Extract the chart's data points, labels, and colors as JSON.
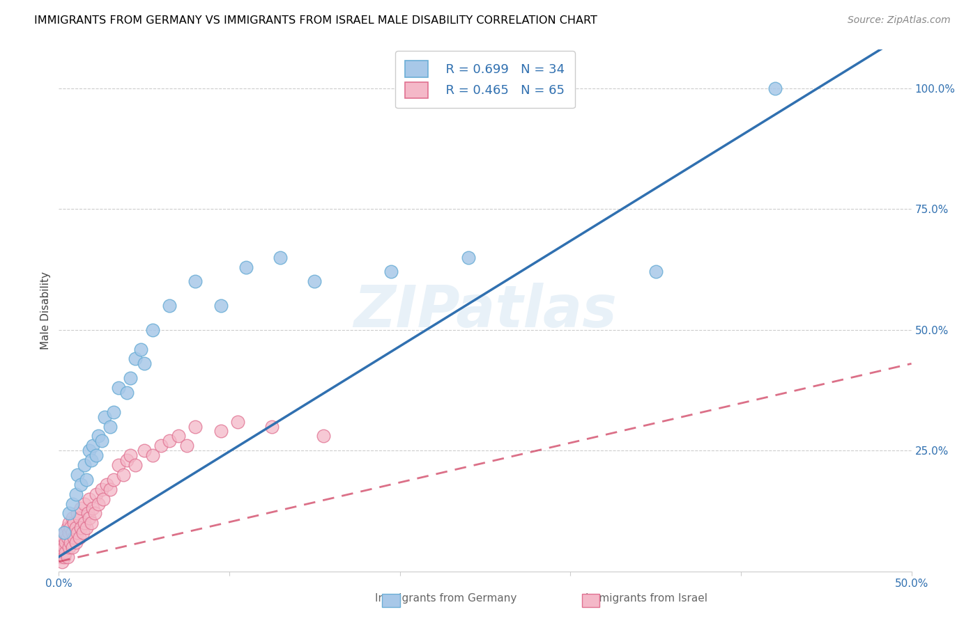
{
  "title": "IMMIGRANTS FROM GERMANY VS IMMIGRANTS FROM ISRAEL MALE DISABILITY CORRELATION CHART",
  "source": "Source: ZipAtlas.com",
  "ylabel": "Male Disability",
  "xlim": [
    0.0,
    0.5
  ],
  "ylim": [
    0.0,
    1.08
  ],
  "xtick_labels": [
    "0.0%",
    "",
    "",
    "",
    "",
    "50.0%"
  ],
  "xtick_vals": [
    0.0,
    0.1,
    0.2,
    0.3,
    0.4,
    0.5
  ],
  "ytick_labels": [
    "25.0%",
    "50.0%",
    "75.0%",
    "100.0%"
  ],
  "ytick_vals": [
    0.25,
    0.5,
    0.75,
    1.0
  ],
  "germany_color": "#a8c8e8",
  "germany_edge": "#6baed6",
  "israel_color": "#f4b8c8",
  "israel_edge": "#e07090",
  "germany_line_color": "#3070b0",
  "israel_line_color": "#d04060",
  "watermark": "ZIPatlas",
  "legend_r_germany": "R = 0.699",
  "legend_n_germany": "N = 34",
  "legend_r_israel": "R = 0.465",
  "legend_n_israel": "N = 65",
  "germany_slope": 2.18,
  "germany_intercept": 0.03,
  "israel_slope": 0.82,
  "israel_intercept": 0.02,
  "germany_x": [
    0.003,
    0.006,
    0.008,
    0.01,
    0.011,
    0.013,
    0.015,
    0.016,
    0.018,
    0.019,
    0.02,
    0.022,
    0.023,
    0.025,
    0.027,
    0.03,
    0.032,
    0.035,
    0.04,
    0.042,
    0.045,
    0.048,
    0.05,
    0.055,
    0.065,
    0.08,
    0.095,
    0.11,
    0.13,
    0.15,
    0.195,
    0.24,
    0.35,
    0.42
  ],
  "germany_y": [
    0.08,
    0.12,
    0.14,
    0.16,
    0.2,
    0.18,
    0.22,
    0.19,
    0.25,
    0.23,
    0.26,
    0.24,
    0.28,
    0.27,
    0.32,
    0.3,
    0.33,
    0.38,
    0.37,
    0.4,
    0.44,
    0.46,
    0.43,
    0.5,
    0.55,
    0.6,
    0.55,
    0.63,
    0.65,
    0.6,
    0.62,
    0.65,
    0.62,
    1.0
  ],
  "israel_x": [
    0.001,
    0.001,
    0.002,
    0.002,
    0.002,
    0.003,
    0.003,
    0.003,
    0.004,
    0.004,
    0.004,
    0.005,
    0.005,
    0.005,
    0.006,
    0.006,
    0.006,
    0.007,
    0.007,
    0.008,
    0.008,
    0.008,
    0.009,
    0.009,
    0.01,
    0.01,
    0.011,
    0.011,
    0.012,
    0.012,
    0.013,
    0.013,
    0.014,
    0.015,
    0.015,
    0.016,
    0.017,
    0.018,
    0.018,
    0.019,
    0.02,
    0.021,
    0.022,
    0.023,
    0.025,
    0.026,
    0.028,
    0.03,
    0.032,
    0.035,
    0.038,
    0.04,
    0.042,
    0.045,
    0.05,
    0.055,
    0.06,
    0.065,
    0.07,
    0.075,
    0.08,
    0.095,
    0.105,
    0.125,
    0.155
  ],
  "israel_y": [
    0.03,
    0.05,
    0.02,
    0.04,
    0.06,
    0.03,
    0.05,
    0.07,
    0.04,
    0.06,
    0.08,
    0.03,
    0.07,
    0.09,
    0.05,
    0.08,
    0.1,
    0.06,
    0.09,
    0.05,
    0.08,
    0.11,
    0.07,
    0.1,
    0.06,
    0.09,
    0.08,
    0.12,
    0.07,
    0.11,
    0.09,
    0.13,
    0.08,
    0.1,
    0.14,
    0.09,
    0.12,
    0.11,
    0.15,
    0.1,
    0.13,
    0.12,
    0.16,
    0.14,
    0.17,
    0.15,
    0.18,
    0.17,
    0.19,
    0.22,
    0.2,
    0.23,
    0.24,
    0.22,
    0.25,
    0.24,
    0.26,
    0.27,
    0.28,
    0.26,
    0.3,
    0.29,
    0.31,
    0.3,
    0.28
  ]
}
